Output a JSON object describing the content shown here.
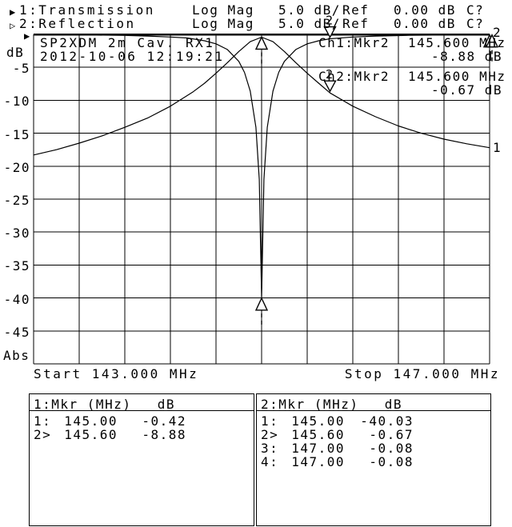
{
  "header": {
    "traces": [
      {
        "icon": "▶",
        "label": "1:Transmission",
        "format": "Log Mag",
        "scale": "5.0 dB/",
        "ref_label": "Ref",
        "ref_value": "0.00 dB",
        "status": "C?"
      },
      {
        "icon": "▷",
        "label": "2:Reflection",
        "format": "Log Mag",
        "scale": "5.0 dB/",
        "ref_label": "Ref",
        "ref_value": "0.00 dB",
        "status": "C?"
      }
    ],
    "ref_level_icon": "▶"
  },
  "chart": {
    "title_line1": "SP2XDM 2m Cav. RX1",
    "title_line2": "2012-10-06 12:19:21",
    "y_axis": {
      "unit": "dB",
      "ticks": [
        "-5",
        "-10",
        "-15",
        "-20",
        "-25",
        "-30",
        "-35",
        "-40",
        "-45"
      ],
      "bottom_label": "Abs"
    },
    "x_axis": {
      "start_label": "Start 143.000 MHz",
      "stop_label": "Stop 147.000 MHz"
    },
    "readouts": [
      {
        "channel": "Ch1:Mkr2",
        "freq": "145.600 MHz",
        "value": "-8.88 dB"
      },
      {
        "channel": "Ch2:Mkr2",
        "freq": "145.600 MHz",
        "value": "-0.67 dB"
      }
    ],
    "trace_end_labels": {
      "reflection": "2",
      "transmission": "1"
    }
  },
  "chart_data": {
    "type": "line",
    "title": "SP2XDM 2m Cav. RX1",
    "xlabel": "MHz",
    "ylabel": "dB",
    "x_range": [
      143.0,
      147.0
    ],
    "y_range": [
      -50,
      0
    ],
    "grid_divisions_x": 10,
    "grid_divisions_y": 10,
    "db_per_division": 5.0,
    "ref_db": 0.0,
    "legend_position": "none",
    "series": [
      {
        "name": "Transmission",
        "points": [
          [
            143.0,
            -18.3
          ],
          [
            143.2,
            -17.5
          ],
          [
            143.4,
            -16.5
          ],
          [
            143.6,
            -15.4
          ],
          [
            143.8,
            -14.1
          ],
          [
            144.0,
            -12.7
          ],
          [
            144.2,
            -10.9
          ],
          [
            144.4,
            -8.7
          ],
          [
            144.5,
            -7.4
          ],
          [
            144.6,
            -5.9
          ],
          [
            144.7,
            -4.3
          ],
          [
            144.8,
            -2.6
          ],
          [
            144.9,
            -1.1
          ],
          [
            145.0,
            -0.42
          ],
          [
            145.1,
            -1.1
          ],
          [
            145.2,
            -2.6
          ],
          [
            145.3,
            -4.3
          ],
          [
            145.4,
            -5.9
          ],
          [
            145.5,
            -7.4
          ],
          [
            145.6,
            -8.88
          ],
          [
            145.8,
            -10.9
          ],
          [
            146.0,
            -12.5
          ],
          [
            146.2,
            -13.9
          ],
          [
            146.4,
            -15.0
          ],
          [
            146.6,
            -15.9
          ],
          [
            146.8,
            -16.6
          ],
          [
            147.0,
            -17.2
          ]
        ]
      },
      {
        "name": "Reflection",
        "points": [
          [
            143.0,
            -0.07
          ],
          [
            143.5,
            -0.1
          ],
          [
            143.8,
            -0.16
          ],
          [
            144.0,
            -0.26
          ],
          [
            144.2,
            -0.4
          ],
          [
            144.35,
            -0.55
          ],
          [
            144.5,
            -0.97
          ],
          [
            144.6,
            -1.43
          ],
          [
            144.7,
            -2.29
          ],
          [
            144.8,
            -4.09
          ],
          [
            144.85,
            -5.77
          ],
          [
            144.9,
            -8.6
          ],
          [
            144.95,
            -14.1
          ],
          [
            144.98,
            -22.0
          ],
          [
            145.0,
            -40.03
          ],
          [
            145.02,
            -22.0
          ],
          [
            145.05,
            -14.1
          ],
          [
            145.1,
            -8.6
          ],
          [
            145.15,
            -5.77
          ],
          [
            145.2,
            -4.09
          ],
          [
            145.3,
            -2.29
          ],
          [
            145.4,
            -1.43
          ],
          [
            145.5,
            -0.97
          ],
          [
            145.6,
            -0.67
          ],
          [
            145.8,
            -0.4
          ],
          [
            146.0,
            -0.26
          ],
          [
            146.3,
            -0.15
          ],
          [
            146.6,
            -0.1
          ],
          [
            147.0,
            -0.08
          ]
        ]
      }
    ],
    "markers": [
      {
        "n": "1",
        "trace": "Transmission",
        "freq": 145.0,
        "db": -0.42,
        "style": "up-triangle"
      },
      {
        "n": "1",
        "trace": "Reflection",
        "freq": 145.0,
        "db": -40.03,
        "style": "up-triangle"
      },
      {
        "n": "2",
        "trace": "Reflection",
        "freq": 145.6,
        "db": -0.67,
        "style": "down-triangle-numbered"
      },
      {
        "n": "2",
        "trace": "Transmission",
        "freq": 145.6,
        "db": -8.88,
        "style": "down-triangle-numbered"
      },
      {
        "n": "3",
        "trace": "Reflection",
        "freq": 147.0,
        "db": -0.08,
        "style": "up-triangle"
      },
      {
        "n": "4",
        "trace": "Reflection",
        "freq": 147.0,
        "db": -0.08,
        "style": "up-triangle"
      }
    ]
  },
  "tables": [
    {
      "title": "1:Mkr (MHz)",
      "unit": "dB",
      "rows": [
        [
          "1:",
          "145.00",
          "-0.42"
        ],
        [
          "2>",
          "145.60",
          "-8.88"
        ]
      ]
    },
    {
      "title": "2:Mkr (MHz)",
      "unit": "dB",
      "rows": [
        [
          "1:",
          "145.00",
          "-40.03"
        ],
        [
          "2>",
          "145.60",
          "-0.67"
        ],
        [
          "3:",
          "147.00",
          "-0.08"
        ],
        [
          "4:",
          "147.00",
          "-0.08"
        ]
      ]
    }
  ],
  "colors": {
    "foreground": "#000000",
    "background": "#ffffff"
  }
}
